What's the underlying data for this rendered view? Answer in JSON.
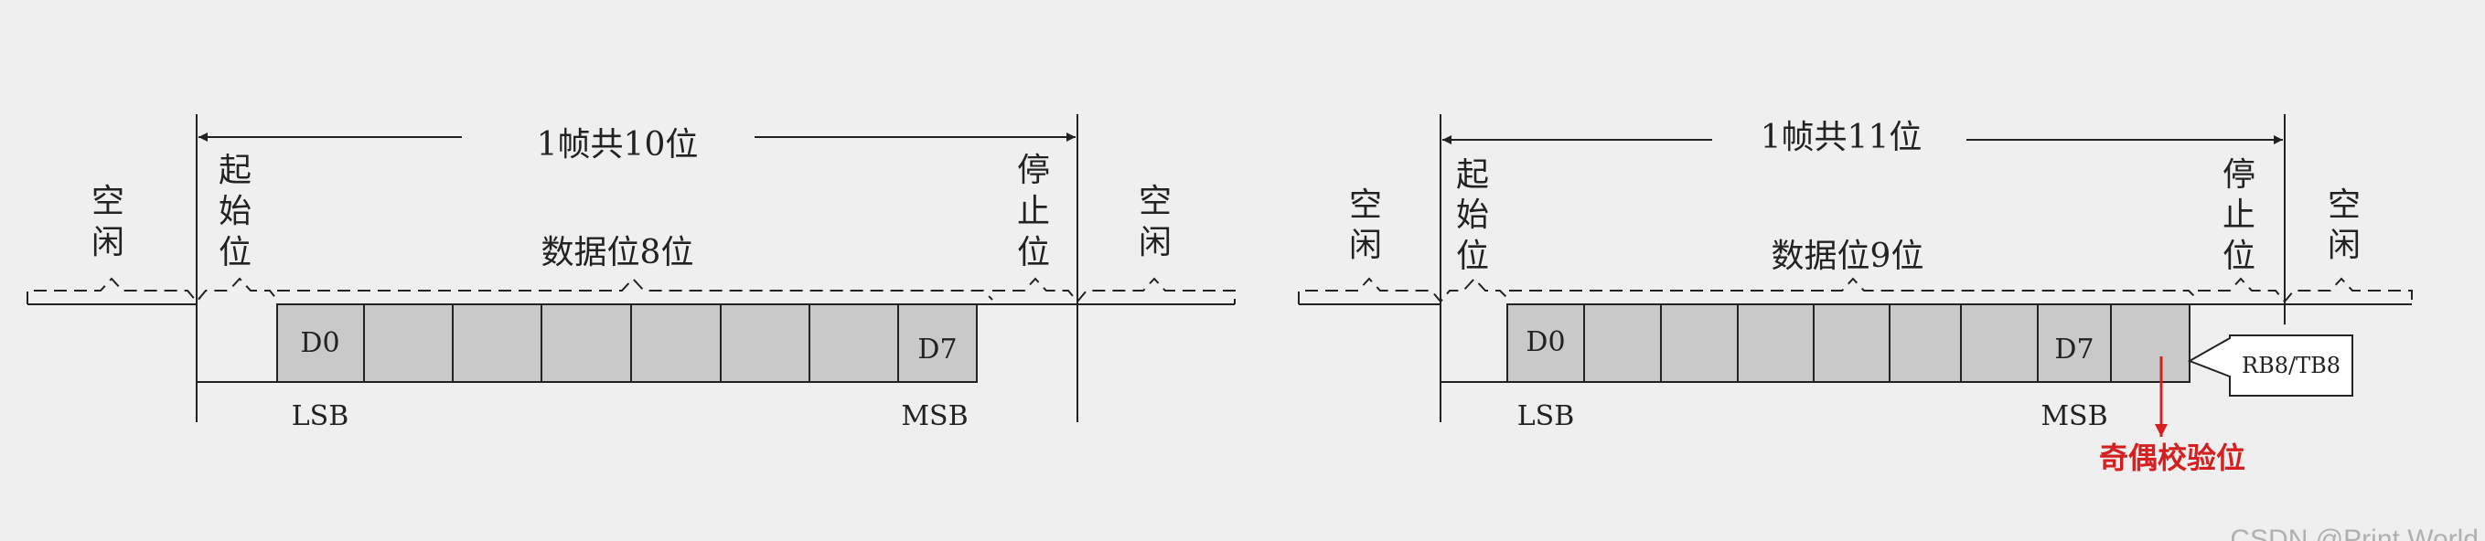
{
  "frame10": {
    "title": "1帧共10位",
    "idle": "空闲",
    "start": "起始位",
    "data_label": "数据位8位",
    "stop": "停止位",
    "d0": "D0",
    "d7": "D7",
    "lsb": "LSB",
    "msb": "MSB"
  },
  "frame11": {
    "title": "1帧共11位",
    "idle": "空闲",
    "start": "起始位",
    "data_label": "数据位9位",
    "stop": "停止位",
    "d0": "D0",
    "d7": "D7",
    "lsb": "LSB",
    "msb": "MSB",
    "rb8": "RB8/TB8",
    "parity": "奇偶校验位"
  },
  "watermark": "CSDN @Print World",
  "colors": {
    "cell_fill": "#c9c9c9",
    "line": "#222222",
    "annotation": "#d42020"
  }
}
